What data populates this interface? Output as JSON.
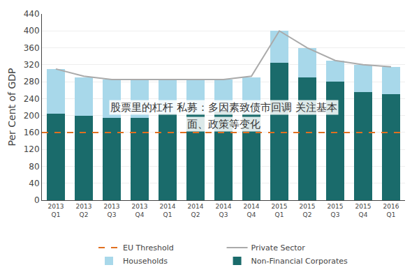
{
  "chart_data": {
    "type": "bar",
    "stacked": true,
    "categories": [
      "2013\nQ1",
      "2013\nQ2",
      "2013\nQ3",
      "2013\nQ4",
      "2014\nQ1",
      "2014\nQ2",
      "2014\nQ3",
      "2014\nQ4",
      "2015\nQ1",
      "2015\nQ2",
      "2015\nQ3",
      "2015\nQ4",
      "2016\nQ1"
    ],
    "series": [
      {
        "name": "Non-Financial Corporates",
        "type": "bar",
        "color": "#1a6b6b",
        "values": [
          205,
          200,
          195,
          195,
          205,
          205,
          210,
          205,
          325,
          290,
          280,
          255,
          250
        ]
      },
      {
        "name": "Households",
        "type": "bar",
        "color": "#a8d8ea",
        "values": [
          105,
          90,
          90,
          90,
          80,
          80,
          75,
          85,
          75,
          70,
          50,
          65,
          65
        ]
      },
      {
        "name": "Private Sector",
        "type": "line",
        "color": "#aaaaaa",
        "line_style": "solid",
        "values": [
          310,
          293,
          285,
          285,
          285,
          285,
          285,
          293,
          400,
          360,
          330,
          320,
          315
        ]
      },
      {
        "name": "EU Threshold",
        "type": "hline",
        "color": "#e07020",
        "line_style": "dashed",
        "value": 160
      }
    ],
    "ylabel": "Per Cent of GDP",
    "ylim": [
      0,
      440
    ],
    "yticks": [
      0,
      40,
      80,
      120,
      160,
      200,
      240,
      280,
      320,
      360,
      400,
      440
    ],
    "grid": true,
    "legend": "bottom",
    "annotations": [
      "股票里的杠杆 私募：多因素致债市回调 关注基本",
      "面、政策等变化"
    ]
  }
}
